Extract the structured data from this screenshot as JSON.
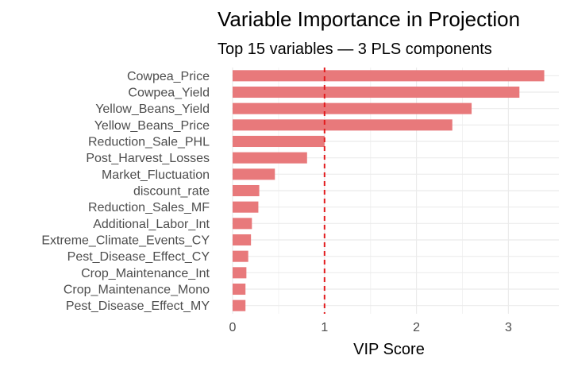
{
  "chart_data": {
    "type": "bar",
    "orientation": "horizontal",
    "title": "Variable Importance in Projection",
    "subtitle": "Top 15 variables — 3 PLS components",
    "xlabel": "VIP Score",
    "ylabel": "",
    "xlim": [
      0,
      3.45
    ],
    "xticks": [
      0,
      1,
      2,
      3
    ],
    "grid": true,
    "bar_color": "#E8797B",
    "reference_line": {
      "value": 1,
      "color": "#E31A1C",
      "style": "dashed"
    },
    "categories": [
      "Cowpea_Price",
      "Cowpea_Yield",
      "Yellow_Beans_Yield",
      "Yellow_Beans_Price",
      "Reduction_Sale_PHL",
      "Post_Harvest_Losses",
      "Market_Fluctuation",
      "discount_rate",
      "Reduction_Sales_MF",
      "Additional_Labor_Int",
      "Extreme_Climate_Events_CY",
      "Pest_Disease_Effect_CY",
      "Crop_Maintenance_Int",
      "Crop_Maintenance_Mono",
      "Pest_Disease_Effect_MY"
    ],
    "values": [
      3.39,
      3.12,
      2.6,
      2.39,
      1.0,
      0.81,
      0.46,
      0.29,
      0.28,
      0.21,
      0.2,
      0.17,
      0.15,
      0.14,
      0.14
    ]
  }
}
